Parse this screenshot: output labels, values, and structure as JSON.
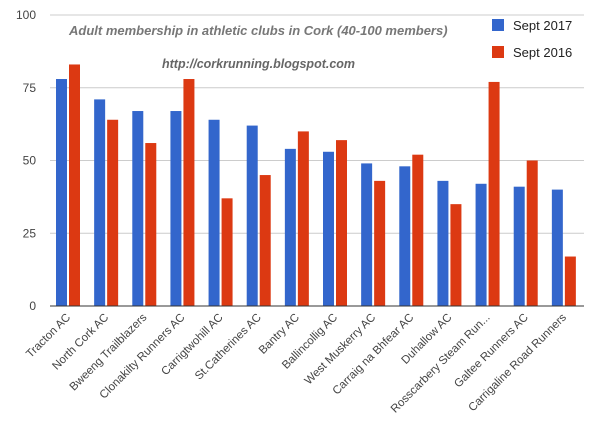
{
  "chart_data": {
    "type": "bar",
    "title": "Adult membership in athletic clubs in Cork (40-100 members)",
    "subtitle": "http://corkrunning.blogspot.com",
    "categories": [
      "Tracton AC",
      "North Cork AC",
      "Bweeng Trailblazers",
      "Clonakilty Runners AC",
      "Carrigtwohill AC",
      "St.Catherines AC",
      "Bantry AC",
      "Ballincollig AC",
      "West Muskerry AC",
      "Carraig na Bhfear AC",
      "Duhallow AC",
      "Rosscarbery Steam Run...",
      "Galtee Runners AC",
      "Carrigaline Road Runners"
    ],
    "series": [
      {
        "name": "Sept 2017",
        "color": "#3366cc",
        "values": [
          78,
          71,
          67,
          67,
          64,
          62,
          54,
          53,
          49,
          48,
          43,
          42,
          41,
          40
        ]
      },
      {
        "name": "Sept 2016",
        "color": "#dc3912",
        "values": [
          83,
          64,
          56,
          78,
          37,
          45,
          60,
          57,
          43,
          52,
          35,
          77,
          50,
          17
        ]
      }
    ],
    "yticks": [
      "0",
      "25",
      "50",
      "75",
      "100"
    ],
    "ylim": [
      0,
      100
    ],
    "xlabel": "",
    "ylabel": "",
    "grid": true,
    "legend_position": "right"
  }
}
